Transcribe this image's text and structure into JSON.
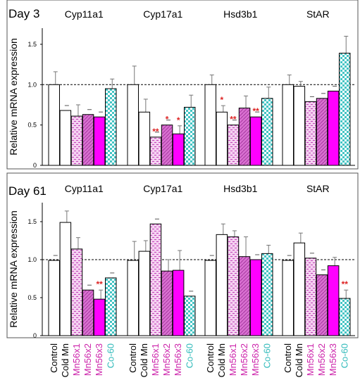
{
  "colors": {
    "control": "#ffffff",
    "cold_mn": "#ffffff",
    "mn56x1": "#e8a8e0",
    "mn56x2": "#d070c8",
    "mn56x3": "#ff00ff",
    "co60": "#55cccc",
    "label_magenta": "#cc22aa",
    "label_cyan": "#33bbbb",
    "significance": "#dd2222"
  },
  "categories": [
    "Control",
    "Cold Mn",
    "Mn56x1",
    "Mn56x2",
    "Mn56x3",
    "Co-60"
  ],
  "category_label_colors": [
    "#000000",
    "#000000",
    "#cc22aa",
    "#cc22aa",
    "#cc22aa",
    "#33bbbb"
  ],
  "chart_data": [
    {
      "type": "bar",
      "title": "Day 3",
      "ylabel": "Relative mRNA expression",
      "ylim": [
        0,
        1.7
      ],
      "yticks": [
        "0",
        "0.5",
        "1.0",
        "1.5"
      ],
      "reference_line": 1.0,
      "groups": [
        {
          "name": "Cyp11a1",
          "values": [
            1.0,
            0.68,
            0.61,
            0.63,
            0.6,
            0.95
          ],
          "errors": [
            0.16,
            0.0,
            0.14,
            0.0,
            0.0,
            0.12
          ],
          "marks": [
            "",
            "",
            "",
            "",
            "",
            ""
          ]
        },
        {
          "name": "Cyp17a1",
          "values": [
            1.0,
            0.66,
            0.35,
            0.5,
            0.39,
            0.72
          ],
          "errors": [
            0.23,
            0.16,
            0.0,
            0.0,
            0.1,
            0.15
          ],
          "marks": [
            "",
            "",
            "**",
            "*",
            "*",
            ""
          ]
        },
        {
          "name": "Hsd3b1",
          "values": [
            1.0,
            0.66,
            0.5,
            0.71,
            0.6,
            0.83
          ],
          "errors": [
            0.12,
            0.08,
            0.0,
            0.15,
            0.0,
            0.14
          ],
          "marks": [
            "",
            "*",
            "**",
            "",
            "**",
            ""
          ]
        },
        {
          "name": "StAR",
          "values": [
            1.0,
            0.98,
            0.79,
            0.83,
            0.92,
            1.39
          ],
          "errors": [
            0.12,
            0.06,
            0.0,
            0.0,
            0.0,
            0.21
          ],
          "marks": [
            "",
            "",
            "",
            "",
            "",
            ""
          ]
        }
      ]
    },
    {
      "type": "bar",
      "title": "Day 61",
      "ylabel": "Relative mRNA expression",
      "ylim": [
        0,
        1.75
      ],
      "yticks": [
        "0",
        "0.5",
        "1.0",
        "1.5"
      ],
      "reference_line": 1.0,
      "groups": [
        {
          "name": "Cyp11a1",
          "values": [
            0.99,
            1.49,
            1.14,
            0.6,
            0.48,
            0.76
          ],
          "errors": [
            0.0,
            0.15,
            0.15,
            0.0,
            0.12,
            0.0
          ],
          "marks": [
            "",
            "",
            "",
            "",
            "**",
            ""
          ]
        },
        {
          "name": "Cyp17a1",
          "values": [
            0.99,
            1.11,
            1.47,
            0.85,
            0.86,
            0.52
          ],
          "errors": [
            0.25,
            0.14,
            0.0,
            0.15,
            0.26,
            0.0
          ],
          "marks": [
            "",
            "",
            "",
            "",
            "",
            ""
          ]
        },
        {
          "name": "Hsd3b1",
          "values": [
            0.99,
            1.33,
            1.3,
            1.04,
            1.0,
            1.08
          ],
          "errors": [
            0.0,
            0.14,
            0.08,
            0.26,
            0.0,
            0.11
          ],
          "marks": [
            "",
            "",
            "",
            "",
            "",
            ""
          ]
        },
        {
          "name": "StAR",
          "values": [
            0.99,
            1.22,
            1.02,
            0.8,
            0.92,
            0.49
          ],
          "errors": [
            0.0,
            0.13,
            0.0,
            0.0,
            0.11,
            0.11
          ],
          "marks": [
            "",
            "",
            "",
            "",
            "",
            "**"
          ]
        }
      ]
    }
  ]
}
